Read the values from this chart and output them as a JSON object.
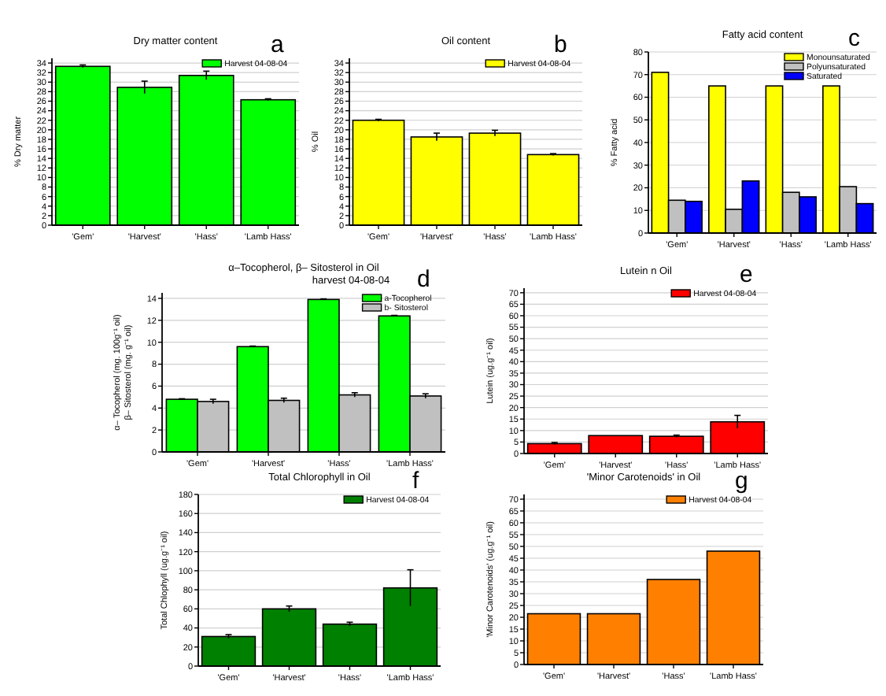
{
  "chart_data": [
    {
      "type": "bar",
      "title": "Dry matter content",
      "ylabel": "% Dry matter",
      "annotations": [
        "a"
      ],
      "categories": [
        "'Gem'",
        "'Harvest'",
        "'Hass'",
        "'Lamb Hass'"
      ],
      "ylim": [
        0,
        35
      ],
      "yticks": [
        0,
        2,
        4,
        6,
        8,
        10,
        12,
        14,
        16,
        18,
        20,
        22,
        24,
        26,
        28,
        30,
        32,
        34
      ],
      "grid": "y",
      "legend": "top right",
      "series": [
        {
          "name": "Harvest 04-08-04",
          "color": "#00ff00",
          "values": [
            33.3,
            28.9,
            31.4,
            26.3
          ],
          "errors": [
            0.3,
            1.3,
            0.9,
            0.2
          ]
        }
      ]
    },
    {
      "type": "bar",
      "title": "Oil content",
      "ylabel": "% Oil",
      "annotations": [
        "b"
      ],
      "categories": [
        "'Gem'",
        "'Harvest'",
        "'Hass'",
        "'Lamb Hass'"
      ],
      "ylim": [
        0,
        35
      ],
      "yticks": [
        0,
        2,
        4,
        6,
        8,
        10,
        12,
        14,
        16,
        18,
        20,
        22,
        24,
        26,
        28,
        30,
        32,
        34
      ],
      "grid": "y",
      "legend": "top right",
      "series": [
        {
          "name": "Harvest 04-08-04",
          "color": "#ffff00",
          "values": [
            22.0,
            18.5,
            19.3,
            14.8
          ],
          "errors": [
            0.2,
            0.8,
            0.6,
            0.2
          ]
        }
      ]
    },
    {
      "type": "bar",
      "title": "Fatty acid content",
      "ylabel": "% Fatty acid",
      "annotations": [
        "c"
      ],
      "categories": [
        "'Gem'",
        "'Harvest'",
        "'Hass'",
        "'Lamb Hass'"
      ],
      "ylim": [
        0,
        80
      ],
      "yticks": [
        0,
        10,
        20,
        30,
        40,
        50,
        60,
        70,
        80
      ],
      "grid": "y",
      "legend": "top right",
      "series": [
        {
          "name": "Monounsaturated",
          "color": "#ffff00",
          "values": [
            71,
            65,
            65,
            65
          ]
        },
        {
          "name": "Polyunsaturated",
          "color": "#c0c0c0",
          "values": [
            14.5,
            10.5,
            18,
            20.5
          ]
        },
        {
          "name": "Saturated",
          "color": "#0000ff",
          "values": [
            14,
            23,
            16,
            13
          ]
        }
      ]
    },
    {
      "type": "bar",
      "title": "α–Tocopherol, β– Sitosterol in Oil",
      "subtitle": "harvest 04-08-04",
      "ylabel": "α– Tocopherol (mg. 100g⁻¹ oil)\nβ– Sitosterol (mg. g⁻¹ oil)",
      "annotations": [
        "d"
      ],
      "categories": [
        "'Gem'",
        "'Harvest'",
        "'Hass'",
        "'Lamb Hass'"
      ],
      "ylim": [
        0,
        14.5
      ],
      "yticks": [
        0,
        2,
        4,
        6,
        8,
        10,
        12,
        14
      ],
      "grid": "y",
      "legend": "top right",
      "series": [
        {
          "name": "a-Tocopherol",
          "color": "#00ff00",
          "values": [
            4.8,
            9.6,
            13.9,
            12.4
          ],
          "errors": [
            0.05,
            0.05,
            0.05,
            0.05
          ]
        },
        {
          "name": "b- Sitosterol",
          "color": "#c0c0c0",
          "values": [
            4.6,
            4.7,
            5.2,
            5.1
          ],
          "errors": [
            0.2,
            0.2,
            0.2,
            0.2
          ]
        }
      ]
    },
    {
      "type": "bar",
      "title": "Lutein n Oil",
      "ylabel": "Lutein (ug.g⁻¹ oil)",
      "annotations": [
        "e"
      ],
      "categories": [
        "'Gem'",
        "'Harvest'",
        "'Hass'",
        "'Lamb Hass'"
      ],
      "ylim": [
        0,
        72
      ],
      "yticks": [
        0,
        5,
        10,
        15,
        20,
        25,
        30,
        35,
        40,
        45,
        50,
        55,
        60,
        65,
        70
      ],
      "grid": "y",
      "legend": "top right",
      "series": [
        {
          "name": "Harvest 04-08-04",
          "color": "#ff0000",
          "values": [
            4.3,
            7.8,
            7.5,
            13.8
          ],
          "errors": [
            0.5,
            null,
            0.5,
            2.8
          ]
        }
      ]
    },
    {
      "type": "bar",
      "title": "Total Chlorophyll in Oil",
      "ylabel": "Total Chlophyll (ug.g⁻¹ oil)",
      "annotations": [
        "f"
      ],
      "categories": [
        "'Gem'",
        "'Harvest'",
        "'Hass'",
        "'Lamb Hass'"
      ],
      "ylim": [
        0,
        180
      ],
      "yticks": [
        0,
        20,
        40,
        60,
        80,
        100,
        120,
        140,
        160,
        180
      ],
      "grid": "y",
      "legend": "top right",
      "series": [
        {
          "name": "Harvest 04-08-04",
          "color": "#008000",
          "values": [
            31,
            60,
            44,
            82
          ],
          "errors": [
            2,
            3,
            2,
            19
          ]
        }
      ]
    },
    {
      "type": "bar",
      "title": "'Minor Carotenoids' in Oil",
      "ylabel": "'Minor Carotenoids' (ug.g⁻¹ oil)",
      "annotations": [
        "g"
      ],
      "categories": [
        "'Gem'",
        "'Harvest'",
        "'Hass'",
        "'Lamb Hass'"
      ],
      "ylim": [
        0,
        72
      ],
      "yticks": [
        0,
        5,
        10,
        15,
        20,
        25,
        30,
        35,
        40,
        45,
        50,
        55,
        60,
        65,
        70
      ],
      "grid": "y",
      "legend": "top right",
      "series": [
        {
          "name": "Harvest 04-08-04",
          "color": "#ff8000",
          "values": [
            21.5,
            21.5,
            36,
            48
          ]
        }
      ]
    }
  ]
}
